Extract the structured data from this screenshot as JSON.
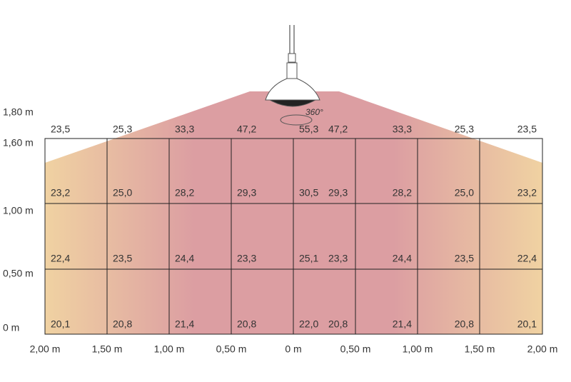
{
  "y_axis_labels": [
    "1,80 m",
    "1,60 m",
    "1,00 m",
    "0,50 m",
    "0 m"
  ],
  "x_axis_labels": [
    "2,00 m",
    "1,50 m",
    "1,00 m",
    "0,50 m",
    "0 m",
    "0,50 m",
    "1,00 m",
    "1,50 m",
    "2,00 m"
  ],
  "annotation": "360°",
  "top_row": [
    "23,5",
    "25,3",
    "33,3",
    "47,2",
    "55,3",
    "47,2",
    "33,3",
    "25,3",
    "23,5"
  ],
  "rows": [
    [
      "23,2",
      "25,0",
      "28,2",
      "29,3",
      "30,5",
      "29,3",
      "28,2",
      "25,0",
      "23,2"
    ],
    [
      "22,4",
      "23,5",
      "24,4",
      "23,3",
      "25,1",
      "23,3",
      "24,4",
      "23,5",
      "22,4"
    ],
    [
      "20,1",
      "20,8",
      "21,4",
      "20,8",
      "22,0",
      "20,8",
      "21,4",
      "20,8",
      "20,1"
    ]
  ]
}
